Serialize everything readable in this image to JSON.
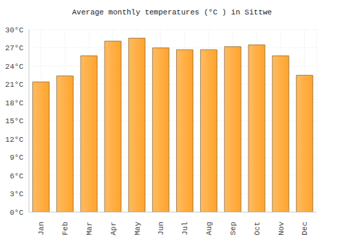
{
  "chart_data": {
    "type": "bar",
    "title": "Average monthly temperatures (°C ) in Sittwe",
    "categories": [
      "Jan",
      "Feb",
      "Mar",
      "Apr",
      "May",
      "Jun",
      "Jul",
      "Aug",
      "Sep",
      "Oct",
      "Nov",
      "Dec"
    ],
    "values": [
      21.4,
      22.4,
      25.7,
      28.1,
      28.6,
      27.0,
      26.7,
      26.7,
      27.2,
      27.5,
      25.7,
      22.5
    ],
    "color": "#ffa42b",
    "ylim": [
      0,
      30
    ],
    "yticks": [
      {
        "value": 0,
        "label": "0°C"
      },
      {
        "value": 3,
        "label": "3°C"
      },
      {
        "value": 6,
        "label": "6°C"
      },
      {
        "value": 9,
        "label": "9°C"
      },
      {
        "value": 12,
        "label": "12°C"
      },
      {
        "value": 15,
        "label": "15°C"
      },
      {
        "value": 18,
        "label": "18°C"
      },
      {
        "value": 21,
        "label": "21°C"
      },
      {
        "value": 24,
        "label": "24°C"
      },
      {
        "value": 27,
        "label": "27°C"
      },
      {
        "value": 30,
        "label": "30°C"
      }
    ],
    "grid": true
  }
}
